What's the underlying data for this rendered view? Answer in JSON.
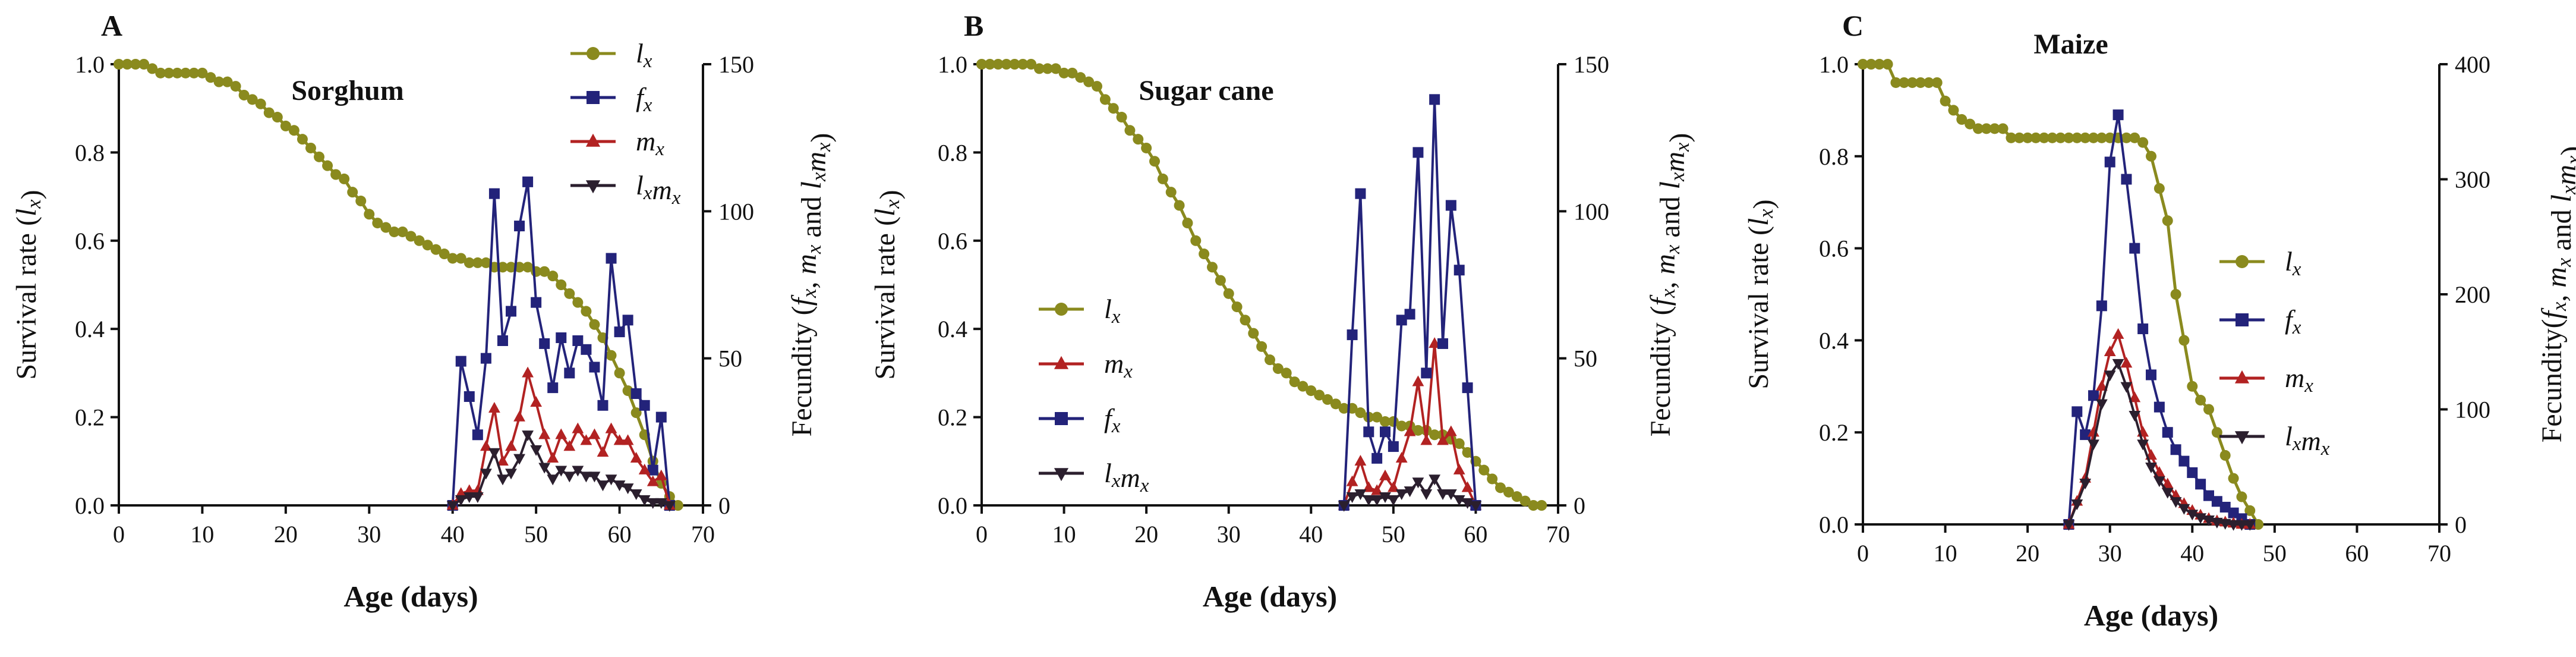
{
  "chart_data": [
    {
      "type": "line",
      "panel": "A",
      "title": "Sorghum",
      "xlabel": "Age (days)",
      "ylabel": "Survival rate (lx)",
      "y2label": "Fecundity (fx, mx and lxmx)",
      "xlim": [
        0,
        70
      ],
      "xticks": [
        0,
        10,
        20,
        30,
        40,
        50,
        60,
        70
      ],
      "ylim": [
        0,
        1.0
      ],
      "yticks": [
        0.0,
        0.2,
        0.4,
        0.6,
        0.8,
        1.0
      ],
      "y2lim": [
        0,
        150
      ],
      "y2ticks": [
        0,
        50,
        100,
        150
      ],
      "legend": {
        "position": "top-right",
        "entries": [
          "lx",
          "fx",
          "mx",
          "lxmx"
        ]
      },
      "series": [
        {
          "name": "lx",
          "axis": "left",
          "color": "#8a8a1e",
          "marker": "circle",
          "x": [
            0,
            1,
            2,
            3,
            4,
            5,
            6,
            7,
            8,
            9,
            10,
            11,
            12,
            13,
            14,
            15,
            16,
            17,
            18,
            19,
            20,
            21,
            22,
            23,
            24,
            25,
            26,
            27,
            28,
            29,
            30,
            31,
            32,
            33,
            34,
            35,
            36,
            37,
            38,
            39,
            40,
            41,
            42,
            43,
            44,
            45,
            46,
            47,
            48,
            49,
            50,
            51,
            52,
            53,
            54,
            55,
            56,
            57,
            58,
            59,
            60,
            61,
            62,
            63,
            64,
            65,
            66,
            67
          ],
          "values": [
            1.0,
            1.0,
            1.0,
            1.0,
            0.99,
            0.98,
            0.98,
            0.98,
            0.98,
            0.98,
            0.98,
            0.97,
            0.96,
            0.96,
            0.95,
            0.93,
            0.92,
            0.91,
            0.89,
            0.88,
            0.86,
            0.85,
            0.83,
            0.81,
            0.79,
            0.77,
            0.75,
            0.74,
            0.71,
            0.69,
            0.66,
            0.64,
            0.63,
            0.62,
            0.62,
            0.61,
            0.6,
            0.59,
            0.58,
            0.57,
            0.56,
            0.56,
            0.55,
            0.55,
            0.55,
            0.54,
            0.54,
            0.54,
            0.54,
            0.54,
            0.53,
            0.53,
            0.52,
            0.5,
            0.48,
            0.46,
            0.44,
            0.41,
            0.38,
            0.34,
            0.3,
            0.26,
            0.21,
            0.16,
            0.1,
            0.05,
            0.02,
            0.0
          ]
        },
        {
          "name": "fx",
          "axis": "right",
          "color": "#23237a",
          "marker": "square",
          "x": [
            40,
            41,
            42,
            43,
            44,
            45,
            46,
            47,
            48,
            49,
            50,
            51,
            52,
            53,
            54,
            55,
            56,
            57,
            58,
            59,
            60,
            61,
            62,
            63,
            64,
            65,
            66
          ],
          "values": [
            0,
            49,
            37,
            24,
            50,
            106,
            56,
            66,
            95,
            110,
            69,
            55,
            40,
            57,
            45,
            56,
            53,
            47,
            34,
            84,
            59,
            63,
            38,
            34,
            12,
            30,
            0
          ]
        },
        {
          "name": "mx",
          "axis": "right",
          "color": "#b22222",
          "marker": "triangle",
          "x": [
            40,
            41,
            42,
            43,
            44,
            45,
            46,
            47,
            48,
            49,
            50,
            51,
            52,
            53,
            54,
            55,
            56,
            57,
            58,
            59,
            60,
            61,
            62,
            63,
            64,
            65,
            66
          ],
          "values": [
            0,
            4,
            5,
            5,
            20,
            33,
            15,
            20,
            30,
            45,
            35,
            24,
            16,
            24,
            20,
            26,
            22,
            24,
            18,
            26,
            22,
            22,
            16,
            12,
            8,
            10,
            0
          ]
        },
        {
          "name": "lxmx",
          "axis": "right",
          "color": "#2b1f2e",
          "marker": "triangle-down",
          "x": [
            40,
            41,
            42,
            43,
            44,
            45,
            46,
            47,
            48,
            49,
            50,
            51,
            52,
            53,
            54,
            55,
            56,
            57,
            58,
            59,
            60,
            61,
            62,
            63,
            64,
            65,
            66
          ],
          "values": [
            0,
            2,
            3,
            3,
            11,
            18,
            9,
            11,
            16,
            24,
            19,
            13,
            9,
            12,
            10,
            12,
            10,
            10,
            7,
            9,
            7,
            6,
            4,
            2,
            1,
            1,
            0
          ]
        }
      ]
    },
    {
      "type": "line",
      "panel": "B",
      "title": "Sugar cane",
      "xlabel": "Age (days)",
      "ylabel": "Survival rate (lx)",
      "y2label": "Fecundity (fx, mx and lxmx)",
      "xlim": [
        0,
        70
      ],
      "xticks": [
        0,
        10,
        20,
        30,
        40,
        50,
        60,
        70
      ],
      "ylim": [
        0,
        1.0
      ],
      "yticks": [
        0.0,
        0.2,
        0.4,
        0.6,
        0.8,
        1.0
      ],
      "y2lim": [
        0,
        150
      ],
      "y2ticks": [
        0,
        50,
        100,
        150
      ],
      "legend": {
        "position": "center-left",
        "entries": [
          "lx",
          "mx",
          "fx",
          "lxmx"
        ]
      },
      "series": [
        {
          "name": "lx",
          "axis": "left",
          "color": "#8a8a1e",
          "marker": "circle",
          "x": [
            0,
            1,
            2,
            3,
            4,
            5,
            6,
            7,
            8,
            9,
            10,
            11,
            12,
            13,
            14,
            15,
            16,
            17,
            18,
            19,
            20,
            21,
            22,
            23,
            24,
            25,
            26,
            27,
            28,
            29,
            30,
            31,
            32,
            33,
            34,
            35,
            36,
            37,
            38,
            39,
            40,
            41,
            42,
            43,
            44,
            45,
            46,
            47,
            48,
            49,
            50,
            51,
            52,
            53,
            54,
            55,
            56,
            57,
            58,
            59,
            60,
            61,
            62,
            63,
            64,
            65,
            66,
            67,
            68
          ],
          "values": [
            1.0,
            1.0,
            1.0,
            1.0,
            1.0,
            1.0,
            1.0,
            0.99,
            0.99,
            0.99,
            0.98,
            0.98,
            0.97,
            0.96,
            0.95,
            0.92,
            0.9,
            0.88,
            0.85,
            0.83,
            0.81,
            0.78,
            0.74,
            0.71,
            0.68,
            0.64,
            0.6,
            0.57,
            0.54,
            0.51,
            0.48,
            0.45,
            0.42,
            0.39,
            0.36,
            0.33,
            0.31,
            0.3,
            0.28,
            0.27,
            0.26,
            0.25,
            0.24,
            0.23,
            0.22,
            0.22,
            0.21,
            0.2,
            0.2,
            0.19,
            0.19,
            0.18,
            0.18,
            0.17,
            0.17,
            0.16,
            0.16,
            0.15,
            0.14,
            0.12,
            0.1,
            0.08,
            0.06,
            0.04,
            0.03,
            0.02,
            0.01,
            0.0,
            0.0
          ]
        },
        {
          "name": "mx",
          "axis": "right",
          "color": "#b22222",
          "marker": "triangle",
          "x": [
            44,
            45,
            46,
            47,
            48,
            49,
            50,
            51,
            52,
            53,
            54,
            55,
            56,
            57,
            58,
            59,
            60
          ],
          "values": [
            0,
            8,
            15,
            6,
            5,
            10,
            6,
            16,
            25,
            42,
            22,
            55,
            22,
            25,
            12,
            6,
            0
          ]
        },
        {
          "name": "fx",
          "axis": "right",
          "color": "#23237a",
          "marker": "square",
          "x": [
            44,
            45,
            46,
            47,
            48,
            49,
            50,
            51,
            52,
            53,
            54,
            55,
            56,
            57,
            58,
            59,
            60
          ],
          "values": [
            0,
            58,
            106,
            25,
            16,
            25,
            20,
            63,
            65,
            120,
            45,
            138,
            55,
            102,
            80,
            40,
            0
          ]
        },
        {
          "name": "lxmx",
          "axis": "right",
          "color": "#2b1f2e",
          "marker": "triangle-down",
          "x": [
            44,
            45,
            46,
            47,
            48,
            49,
            50,
            51,
            52,
            53,
            54,
            55,
            56,
            57,
            58,
            59,
            60
          ],
          "values": [
            0,
            3,
            4,
            2,
            2,
            3,
            2,
            4,
            5,
            8,
            4,
            9,
            4,
            4,
            2,
            1,
            0
          ]
        }
      ]
    },
    {
      "type": "line",
      "panel": "C",
      "title": "Maize",
      "xlabel": "Age (days)",
      "ylabel": "Survival rate (lx)",
      "y2label": "Fecundity(fx, mx and lxmx)",
      "xlim": [
        0,
        70
      ],
      "xticks": [
        0,
        10,
        20,
        30,
        40,
        50,
        60,
        70
      ],
      "ylim": [
        0,
        1.0
      ],
      "yticks": [
        0.0,
        0.2,
        0.4,
        0.6,
        0.8,
        1.0
      ],
      "y2lim": [
        0,
        400
      ],
      "y2ticks": [
        0,
        100,
        200,
        300,
        400
      ],
      "legend": {
        "position": "center-right",
        "entries": [
          "lx",
          "fx",
          "mx",
          "lxmx"
        ]
      },
      "series": [
        {
          "name": "lx",
          "axis": "left",
          "color": "#8a8a1e",
          "marker": "circle",
          "x": [
            0,
            1,
            2,
            3,
            4,
            5,
            6,
            7,
            8,
            9,
            10,
            11,
            12,
            13,
            14,
            15,
            16,
            17,
            18,
            19,
            20,
            21,
            22,
            23,
            24,
            25,
            26,
            27,
            28,
            29,
            30,
            31,
            32,
            33,
            34,
            35,
            36,
            37,
            38,
            39,
            40,
            41,
            42,
            43,
            44,
            45,
            46,
            47,
            48
          ],
          "values": [
            1.0,
            1.0,
            1.0,
            1.0,
            0.96,
            0.96,
            0.96,
            0.96,
            0.96,
            0.96,
            0.92,
            0.9,
            0.88,
            0.87,
            0.86,
            0.86,
            0.86,
            0.86,
            0.84,
            0.84,
            0.84,
            0.84,
            0.84,
            0.84,
            0.84,
            0.84,
            0.84,
            0.84,
            0.84,
            0.84,
            0.84,
            0.84,
            0.84,
            0.84,
            0.83,
            0.8,
            0.73,
            0.66,
            0.5,
            0.4,
            0.3,
            0.27,
            0.25,
            0.2,
            0.15,
            0.1,
            0.06,
            0.03,
            0.0
          ]
        },
        {
          "name": "fx",
          "axis": "right",
          "color": "#23237a",
          "marker": "square",
          "x": [
            25,
            26,
            27,
            28,
            29,
            30,
            31,
            32,
            33,
            34,
            35,
            36,
            37,
            38,
            39,
            40,
            41,
            42,
            43,
            44,
            45,
            46,
            47
          ],
          "values": [
            0,
            98,
            78,
            112,
            190,
            315,
            356,
            300,
            240,
            170,
            130,
            102,
            80,
            65,
            55,
            45,
            35,
            25,
            20,
            15,
            10,
            5,
            0
          ]
        },
        {
          "name": "mx",
          "axis": "right",
          "color": "#b22222",
          "marker": "triangle",
          "x": [
            25,
            26,
            27,
            28,
            29,
            30,
            31,
            32,
            33,
            34,
            35,
            36,
            37,
            38,
            39,
            40,
            41,
            42,
            43,
            44,
            45,
            46,
            47
          ],
          "values": [
            0,
            20,
            40,
            80,
            120,
            150,
            165,
            140,
            110,
            80,
            60,
            45,
            35,
            25,
            18,
            12,
            8,
            5,
            3,
            2,
            1,
            0,
            0
          ]
        },
        {
          "name": "lxmx",
          "axis": "right",
          "color": "#2b1f2e",
          "marker": "triangle-down",
          "x": [
            25,
            26,
            27,
            28,
            29,
            30,
            31,
            32,
            33,
            34,
            35,
            36,
            37,
            38,
            39,
            40,
            41,
            42,
            43,
            44,
            45,
            46,
            47
          ],
          "values": [
            0,
            18,
            36,
            70,
            105,
            130,
            140,
            120,
            95,
            70,
            50,
            38,
            28,
            20,
            14,
            9,
            6,
            4,
            2,
            1,
            0,
            0,
            0
          ]
        }
      ]
    }
  ]
}
